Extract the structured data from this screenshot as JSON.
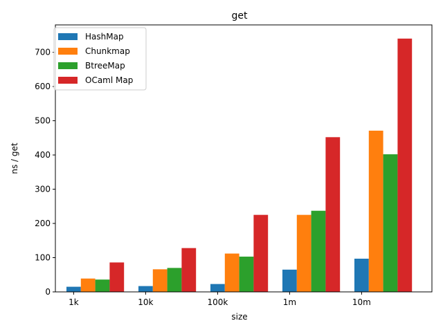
{
  "chart_data": {
    "type": "bar",
    "title": "get",
    "xlabel": "size",
    "ylabel": "ns / get",
    "categories": [
      "1k",
      "10k",
      "100k",
      "1m",
      "10m"
    ],
    "series": [
      {
        "name": "HashMap",
        "color": "#1f77b4",
        "values": [
          15,
          17,
          23,
          65,
          97
        ]
      },
      {
        "name": "Chunkmap",
        "color": "#ff7f0e",
        "values": [
          39,
          66,
          112,
          225,
          471
        ]
      },
      {
        "name": "BtreeMap",
        "color": "#2ca02c",
        "values": [
          36,
          70,
          103,
          237,
          402
        ]
      },
      {
        "name": "OCaml Map",
        "color": "#d62728",
        "values": [
          86,
          128,
          225,
          452,
          740
        ]
      }
    ],
    "ylim": [
      0,
      780
    ],
    "yticks": [
      0,
      100,
      200,
      300,
      400,
      500,
      600,
      700
    ],
    "grid": false,
    "legend_position": "upper left"
  }
}
